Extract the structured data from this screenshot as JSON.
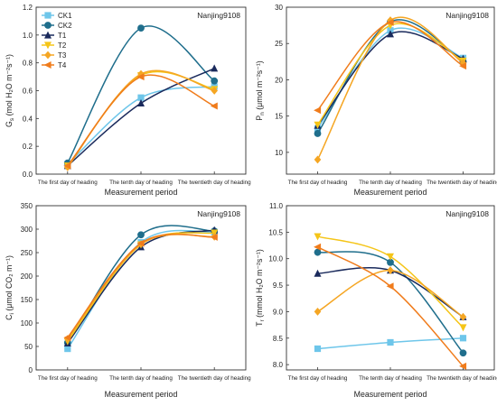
{
  "x_categories": [
    "The first day of heading",
    "The tenth day of heading",
    "The twentieth day of heading"
  ],
  "xlabel": "Measurement period",
  "legend": [
    {
      "name": "CK1",
      "color": "#6ec6ea",
      "marker": "square"
    },
    {
      "name": "CK2",
      "color": "#1f6e8c",
      "marker": "circle"
    },
    {
      "name": "T1",
      "color": "#1a2a5c",
      "marker": "triangle-up"
    },
    {
      "name": "T2",
      "color": "#f5c518",
      "marker": "triangle-down"
    },
    {
      "name": "T3",
      "color": "#f5a623",
      "marker": "diamond"
    },
    {
      "name": "T4",
      "color": "#f07c1c",
      "marker": "triangle-left"
    }
  ],
  "chart_data": [
    {
      "type": "line",
      "id": "gs",
      "title": "Nanjing9108",
      "ylabel_main": "G",
      "ylabel_sub": "s",
      "ylabel_unit": "(mol H₂O m⁻²s⁻¹)",
      "ylim": [
        0,
        1.2
      ],
      "yticks": [
        "0.0",
        "0.2",
        "0.4",
        "0.6",
        "0.8",
        "1.0",
        "1.2"
      ],
      "yticks_values": [
        0,
        0.2,
        0.4,
        0.6,
        0.8,
        1.0,
        1.2
      ],
      "show_legend": true,
      "categories": [
        "The first day of heading",
        "The tenth day of heading",
        "The twentieth day of heading"
      ],
      "series": [
        {
          "name": "CK1",
          "values": [
            0.07,
            0.55,
            0.63
          ]
        },
        {
          "name": "CK2",
          "values": [
            0.08,
            1.05,
            0.67
          ]
        },
        {
          "name": "T1",
          "values": [
            0.06,
            0.51,
            0.76
          ]
        },
        {
          "name": "T2",
          "values": [
            0.06,
            0.71,
            0.61
          ]
        },
        {
          "name": "T3",
          "values": [
            0.05,
            0.72,
            0.6
          ]
        },
        {
          "name": "T4",
          "values": [
            0.06,
            0.7,
            0.49
          ]
        }
      ]
    },
    {
      "type": "line",
      "id": "pn",
      "title": "Nanjing9108",
      "ylabel_main": "P",
      "ylabel_sub": "n",
      "ylabel_unit": "(μmol m⁻²s⁻¹)",
      "ylim": [
        7,
        30
      ],
      "yticks": [
        "10",
        "15",
        "20",
        "25",
        "30"
      ],
      "yticks_values": [
        10,
        15,
        20,
        25,
        30
      ],
      "show_legend": false,
      "categories": [
        "The first day of heading",
        "The tenth day of heading",
        "The twentieth day of heading"
      ],
      "series": [
        {
          "name": "CK1",
          "values": [
            13.3,
            26.8,
            23.0
          ]
        },
        {
          "name": "CK2",
          "values": [
            12.6,
            28.0,
            22.5
          ]
        },
        {
          "name": "T1",
          "values": [
            13.7,
            26.3,
            22.9
          ]
        },
        {
          "name": "T2",
          "values": [
            13.8,
            27.5,
            22.6
          ]
        },
        {
          "name": "T3",
          "values": [
            9.0,
            28.2,
            22.3
          ]
        },
        {
          "name": "T4",
          "values": [
            15.8,
            27.9,
            21.9
          ]
        }
      ]
    },
    {
      "type": "line",
      "id": "ci",
      "title": "Nanjing9108",
      "ylabel_main": "C",
      "ylabel_sub": "i",
      "ylabel_unit": "(μmol CO₂ m⁻¹)",
      "ylim": [
        0,
        350
      ],
      "yticks": [
        "0",
        "50",
        "100",
        "150",
        "200",
        "250",
        "300",
        "350"
      ],
      "yticks_values": [
        0,
        50,
        100,
        150,
        200,
        250,
        300,
        350
      ],
      "show_legend": false,
      "categories": [
        "The first day of heading",
        "The tenth day of heading",
        "The twentieth day of heading"
      ],
      "series": [
        {
          "name": "CK1",
          "values": [
            45,
            272,
            294
          ]
        },
        {
          "name": "CK2",
          "values": [
            58,
            288,
            296
          ]
        },
        {
          "name": "T1",
          "values": [
            57,
            262,
            298
          ]
        },
        {
          "name": "T2",
          "values": [
            61,
            267,
            292
          ]
        },
        {
          "name": "T3",
          "values": [
            66,
            268,
            284
          ]
        },
        {
          "name": "T4",
          "values": [
            69,
            270,
            283
          ]
        }
      ]
    },
    {
      "type": "line",
      "id": "tr",
      "title": "Nanjing9108",
      "ylabel_main": "T",
      "ylabel_sub": "r",
      "ylabel_unit": "(mmol H₂O m⁻²s⁻¹)",
      "ylim": [
        7.9,
        11.0
      ],
      "yticks": [
        "8.0",
        "8.5",
        "9.0",
        "9.5",
        "10.0",
        "10.5",
        "11.0"
      ],
      "yticks_values": [
        8.0,
        8.5,
        9.0,
        9.5,
        10.0,
        10.5,
        11.0
      ],
      "show_legend": false,
      "categories": [
        "The first day of heading",
        "The tenth day of heading",
        "The twentieth day of heading"
      ],
      "series": [
        {
          "name": "CK1",
          "values": [
            8.3,
            8.42,
            8.5
          ]
        },
        {
          "name": "CK2",
          "values": [
            10.12,
            9.93,
            8.22
          ]
        },
        {
          "name": "T1",
          "values": [
            9.72,
            9.78,
            8.9
          ]
        },
        {
          "name": "T2",
          "values": [
            10.42,
            10.04,
            8.7
          ]
        },
        {
          "name": "T3",
          "values": [
            9.0,
            9.78,
            8.9
          ]
        },
        {
          "name": "T4",
          "values": [
            10.22,
            9.48,
            7.97
          ]
        }
      ]
    }
  ]
}
